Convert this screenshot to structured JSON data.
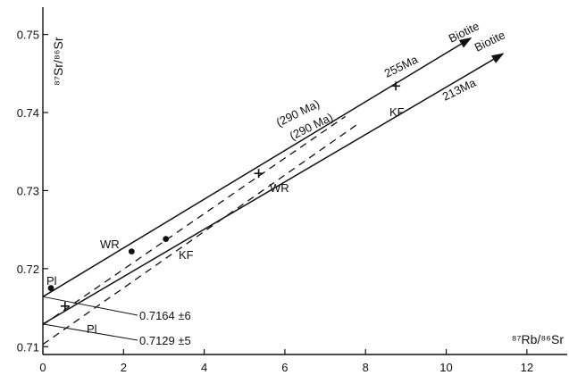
{
  "chart_data": {
    "type": "scatter",
    "x_axis": {
      "label": "⁸⁷Rb/⁸⁶Sr",
      "range": [
        0,
        13
      ],
      "ticks": [
        "0",
        "2",
        "4",
        "6",
        "8",
        "10",
        "12"
      ]
    },
    "y_axis": {
      "label": "⁸⁷Sr/⁸⁶Sr",
      "range": [
        0.709,
        0.7535
      ],
      "ticks": [
        "0.71",
        "0.72",
        "0.73",
        "0.74",
        "0.75"
      ]
    },
    "grid": false,
    "lines": [
      {
        "id": "isochron-255",
        "style": "solid",
        "arrow": true,
        "from": [
          0,
          0.7164
        ],
        "to": [
          10.6,
          0.7495
        ],
        "label": "255Ma",
        "end_label": "Biotite"
      },
      {
        "id": "isochron-213",
        "style": "solid",
        "arrow": true,
        "from": [
          0,
          0.7129
        ],
        "to": [
          11.4,
          0.7475
        ],
        "label": "213Ma",
        "end_label": "Biotite"
      },
      {
        "id": "ref-290-upper",
        "style": "dashed",
        "arrow": false,
        "from": [
          0,
          0.7128
        ],
        "to": [
          7.5,
          0.7395
        ],
        "label": "(290 Ma)"
      },
      {
        "id": "ref-290-lower",
        "style": "dashed",
        "arrow": false,
        "from": [
          0,
          0.7103
        ],
        "to": [
          7.8,
          0.7385
        ],
        "label": "(290 Ma)"
      }
    ],
    "points_dot": [
      {
        "x": 0.2,
        "y": 0.7175,
        "label": "Pl"
      },
      {
        "x": 2.2,
        "y": 0.7222,
        "label": "WR"
      },
      {
        "x": 3.05,
        "y": 0.7238,
        "label": "KF"
      }
    ],
    "points_cross": [
      {
        "x": 0.55,
        "y": 0.7152,
        "label": "Pl"
      },
      {
        "x": 5.35,
        "y": 0.7322,
        "label": "WR"
      },
      {
        "x": 8.75,
        "y": 0.7434,
        "label": "KF"
      }
    ],
    "intercepts": [
      {
        "value": 0.7164,
        "text": "0.7164 ±6"
      },
      {
        "value": 0.7129,
        "text": "0.7129 ±5"
      }
    ]
  }
}
